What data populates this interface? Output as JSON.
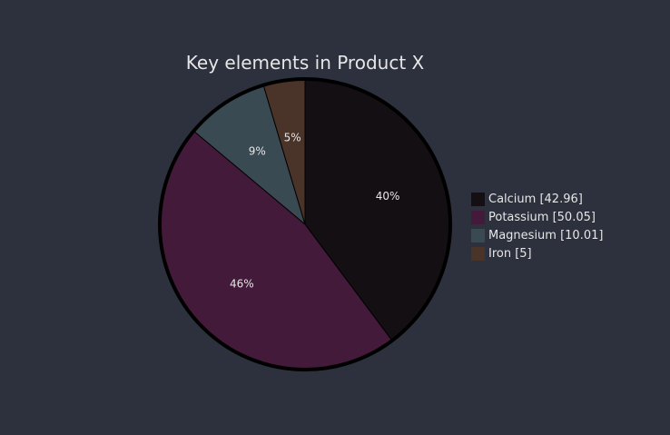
{
  "chart_data": {
    "type": "pie",
    "title": "Key elements in Product X",
    "slices": [
      {
        "label": "Calcium",
        "value": 42.96,
        "legend_text": "Calcium [42.96]",
        "percent_label": "40%",
        "color": "#140f12"
      },
      {
        "label": "Potassium",
        "value": 50.05,
        "legend_text": "Potassium [50.05]",
        "percent_label": "46%",
        "color": "#441a3a"
      },
      {
        "label": "Magnesium",
        "value": 10.01,
        "legend_text": "Magnesium [10.01]",
        "percent_label": "9%",
        "color": "#394a52"
      },
      {
        "label": "Iron",
        "value": 5,
        "legend_text": "Iron [5]",
        "percent_label": "5%",
        "color": "#4a3328"
      }
    ],
    "legend_position": "right",
    "start_angle": "12 o'clock",
    "direction": "clockwise",
    "outline_color": "#000000"
  },
  "colors": {
    "background": "#2d303d",
    "text": "#e6e6e6"
  }
}
